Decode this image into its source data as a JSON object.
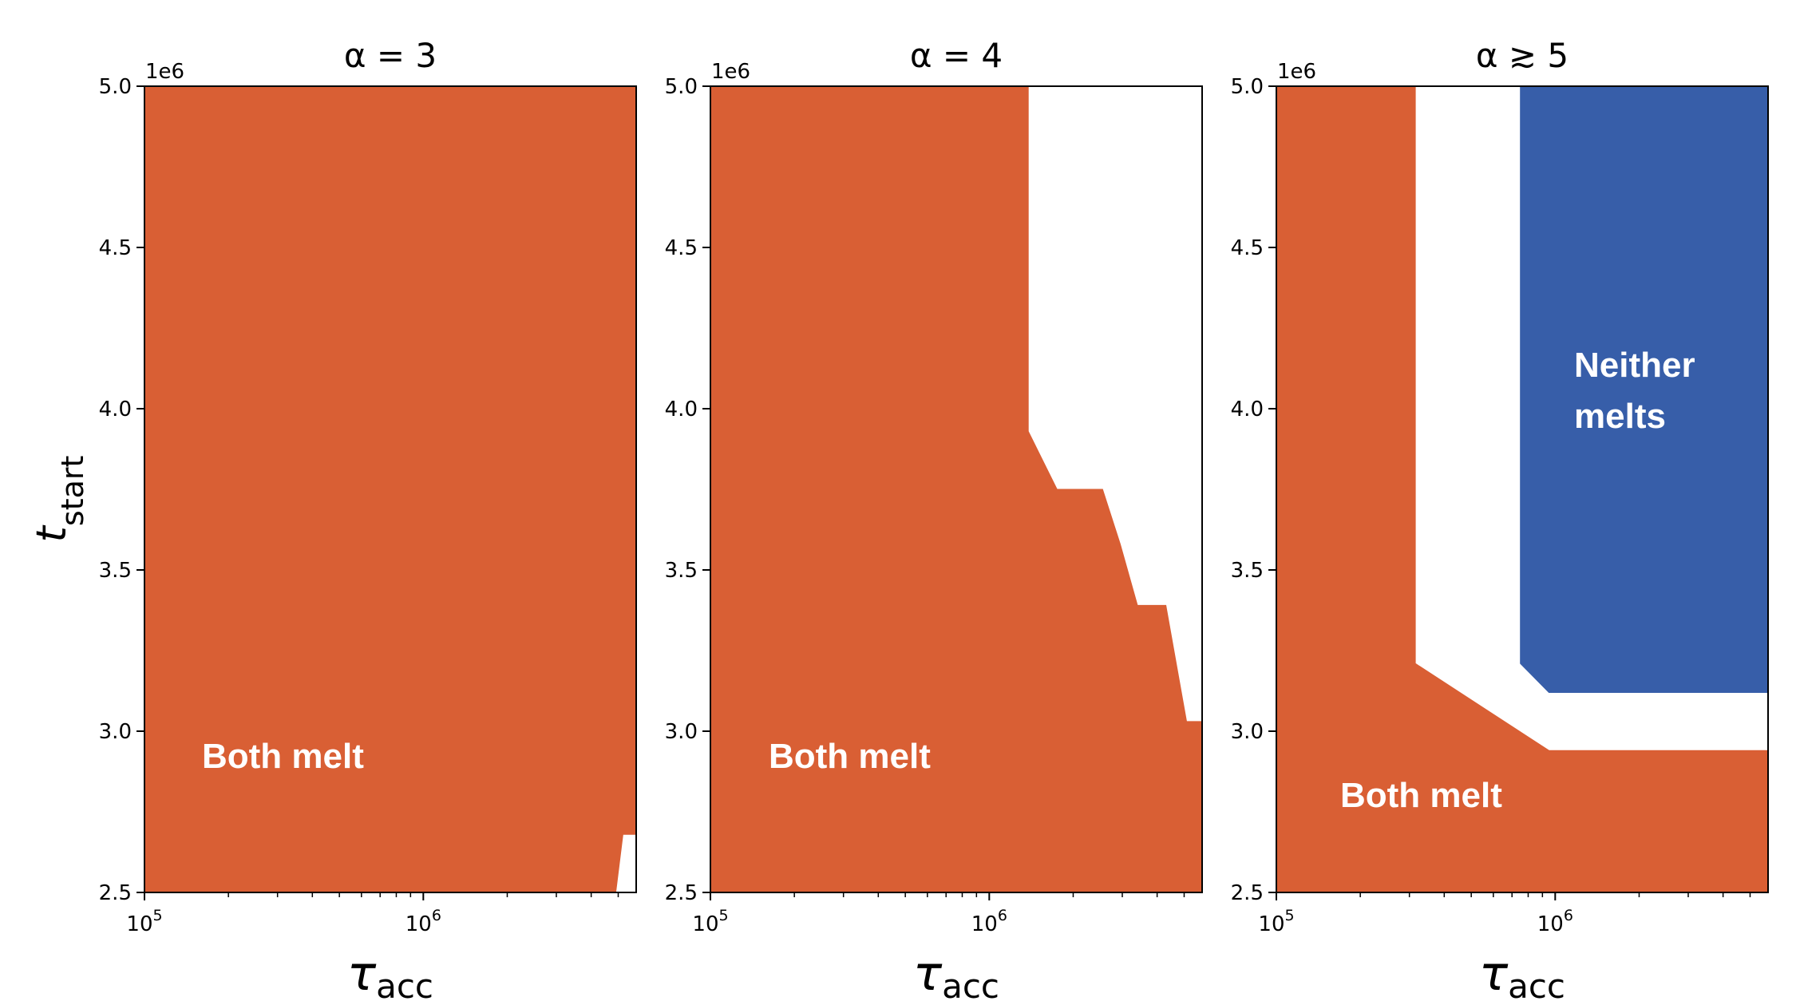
{
  "figure": {
    "ylabel_symbol": "t",
    "ylabel_sub": "start",
    "xlabel_symbol": "τ",
    "xlabel_sub": "acc"
  },
  "colors": {
    "both_melt": "#D95F34",
    "neither_melts": "#375EA9",
    "background": "#FFFFFF",
    "axis": "#000000"
  },
  "chart_data": [
    {
      "type": "area",
      "title": "α = 3",
      "xscale": "log",
      "xlim": [
        100000,
        5800000
      ],
      "ylim": [
        2500000,
        5000000
      ],
      "y_offset_label": "1e6",
      "yticks": [
        2.5,
        3.0,
        3.5,
        4.0,
        4.5,
        5.0
      ],
      "ytick_labels": [
        "2.5",
        "3.0",
        "3.5",
        "4.0",
        "4.5",
        "5.0"
      ],
      "xticks": [
        100000,
        1000000
      ],
      "xtick_labels": [
        {
          "base": "10",
          "exp": "5"
        },
        {
          "base": "10",
          "exp": "6"
        }
      ],
      "regions": [
        {
          "name": "Both melt",
          "color": "#D95F34",
          "label": "Both melt",
          "boundary": [
            [
              100000,
              2500000
            ],
            [
              100000,
              5000000
            ],
            [
              5800000,
              5000000
            ],
            [
              5800000,
              2680000
            ],
            [
              5200000,
              2680000
            ],
            [
              4900000,
              2500000
            ]
          ]
        }
      ]
    },
    {
      "type": "area",
      "title": "α = 4",
      "xscale": "log",
      "xlim": [
        100000,
        5800000
      ],
      "ylim": [
        2500000,
        5000000
      ],
      "y_offset_label": "1e6",
      "yticks": [
        2.5,
        3.0,
        3.5,
        4.0,
        4.5,
        5.0
      ],
      "ytick_labels": [
        "2.5",
        "3.0",
        "3.5",
        "4.0",
        "4.5",
        "5.0"
      ],
      "xticks": [
        100000,
        1000000
      ],
      "xtick_labels": [
        {
          "base": "10",
          "exp": "5"
        },
        {
          "base": "10",
          "exp": "6"
        }
      ],
      "regions": [
        {
          "name": "Both melt",
          "color": "#D95F34",
          "label": "Both melt",
          "boundary": [
            [
              100000,
              2500000
            ],
            [
              100000,
              5000000
            ],
            [
              1380000,
              5000000
            ],
            [
              1380000,
              3930000
            ],
            [
              1750000,
              3750000
            ],
            [
              2550000,
              3750000
            ],
            [
              2950000,
              3580000
            ],
            [
              3400000,
              3390000
            ],
            [
              4300000,
              3390000
            ],
            [
              5100000,
              3030000
            ],
            [
              5800000,
              3030000
            ],
            [
              5800000,
              2500000
            ]
          ]
        }
      ]
    },
    {
      "type": "area",
      "title": "α ≳ 5",
      "xscale": "log",
      "xlim": [
        100000,
        5800000
      ],
      "ylim": [
        2500000,
        5000000
      ],
      "y_offset_label": "1e6",
      "yticks": [
        2.5,
        3.0,
        3.5,
        4.0,
        4.5,
        5.0
      ],
      "ytick_labels": [
        "2.5",
        "3.0",
        "3.5",
        "4.0",
        "4.5",
        "5.0"
      ],
      "xticks": [
        100000,
        1000000
      ],
      "xtick_labels": [
        {
          "base": "10",
          "exp": "5"
        },
        {
          "base": "10",
          "exp": "6"
        }
      ],
      "regions": [
        {
          "name": "Both melt",
          "color": "#D95F34",
          "label": "Both melt",
          "boundary": [
            [
              100000,
              2500000
            ],
            [
              100000,
              5000000
            ],
            [
              315000,
              5000000
            ],
            [
              315000,
              3210000
            ],
            [
              950000,
              2940000
            ],
            [
              5800000,
              2940000
            ],
            [
              5800000,
              2500000
            ]
          ]
        },
        {
          "name": "Neither melts",
          "color": "#375EA9",
          "label": "Neither\nmelts",
          "label_lines": [
            "Neither",
            "melts"
          ],
          "boundary": [
            [
              750000,
              5000000
            ],
            [
              5800000,
              5000000
            ],
            [
              5800000,
              3120000
            ],
            [
              950000,
              3120000
            ],
            [
              750000,
              3210000
            ]
          ]
        }
      ]
    }
  ]
}
